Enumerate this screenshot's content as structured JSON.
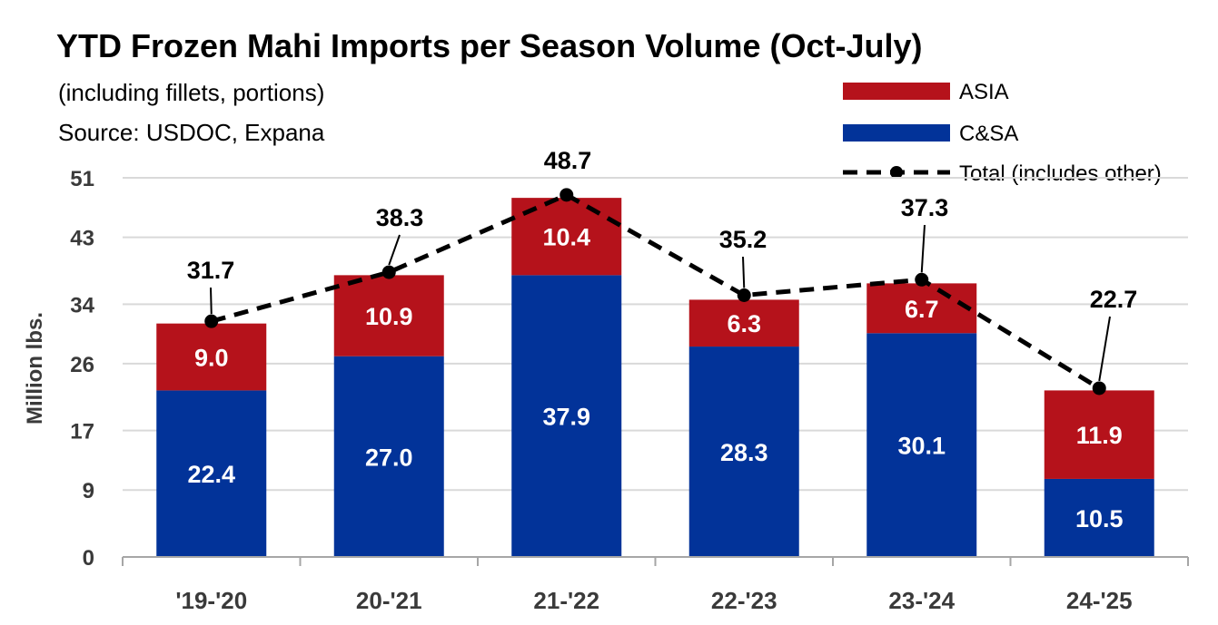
{
  "chart_data": {
    "type": "bar",
    "stacked": true,
    "title": "YTD Frozen Mahi Imports per Season Volume (Oct-July)",
    "subtitle_lines": [
      "(including fillets, portions)",
      "Source: USDOC, Expana"
    ],
    "ylabel": "Million lbs.",
    "xlabel": "",
    "categories": [
      "'19-'20",
      "20-'21",
      "21-'22",
      "22-'23",
      "23-'24",
      "24-'25"
    ],
    "yticks": [
      "0",
      "9",
      "17",
      "26",
      "34",
      "43",
      "51"
    ],
    "ylim": [
      0,
      51
    ],
    "grid": true,
    "legend_position": "top-right",
    "series": [
      {
        "name": "C&SA",
        "kind": "bar",
        "color": "#023399",
        "values": [
          22.4,
          27.0,
          37.9,
          28.3,
          30.1,
          10.5
        ],
        "labels": [
          "22.4",
          "27.0",
          "37.9",
          "28.3",
          "30.1",
          "10.5"
        ]
      },
      {
        "name": "ASIA",
        "kind": "bar",
        "color": "#B5121B",
        "values": [
          9.0,
          10.9,
          10.4,
          6.3,
          6.7,
          11.9
        ],
        "labels": [
          "9.0",
          "10.9",
          "10.4",
          "6.3",
          "6.7",
          "11.9"
        ]
      },
      {
        "name": "Total (includes other)",
        "kind": "line",
        "style": "dashed",
        "color": "#000000",
        "values": [
          31.7,
          38.3,
          48.7,
          35.2,
          37.3,
          22.7
        ],
        "labels": [
          "31.7",
          "38.3",
          "48.7",
          "35.2",
          "37.3",
          "22.7"
        ]
      }
    ],
    "legend_order": [
      "ASIA",
      "C&SA",
      "Total (includes other)"
    ]
  }
}
